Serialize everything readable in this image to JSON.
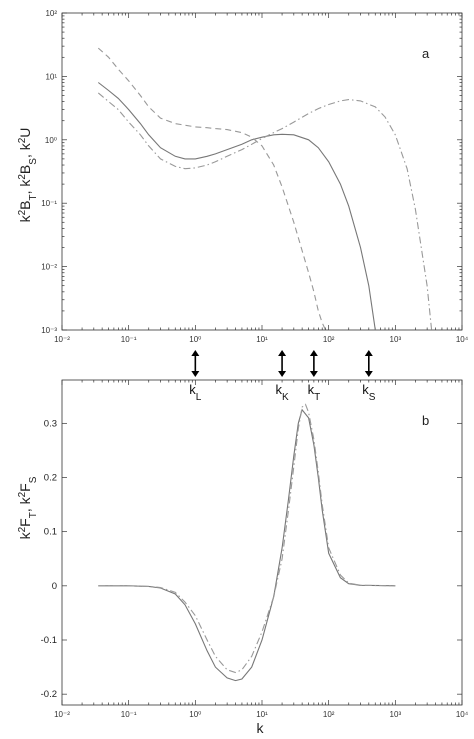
{
  "chart_data": [
    {
      "type": "line",
      "panel_label": "a",
      "ylabel": "k²B_T, k²B_S, k²U",
      "ylabel_parts": [
        {
          "t": "k",
          "sup": false
        },
        {
          "t": "2",
          "sup": true
        },
        {
          "t": "B",
          "sup": false
        },
        {
          "t": "T",
          "sub": true
        },
        {
          "t": ", k",
          "sup": false
        },
        {
          "t": "2",
          "sup": true
        },
        {
          "t": "B",
          "sup": false
        },
        {
          "t": "S",
          "sub": true
        },
        {
          "t": ", k",
          "sup": false
        },
        {
          "t": "2",
          "sup": true
        },
        {
          "t": "U",
          "sup": false
        }
      ],
      "xscale": "log",
      "yscale": "log",
      "xlim": [
        0.01,
        10000
      ],
      "ylim": [
        0.001,
        100
      ],
      "xticks": [
        0.01,
        0.1,
        1,
        10,
        100,
        1000,
        10000
      ],
      "xtick_labels": [
        "10⁻²",
        "10⁻¹",
        "10⁰",
        "10¹",
        "10²",
        "10³",
        "10⁴"
      ],
      "yticks": [
        0.001,
        0.01,
        0.1,
        1,
        10,
        100
      ],
      "ytick_labels": [
        "10⁻³",
        "10⁻²",
        "10⁻¹",
        "10⁰",
        "10¹",
        "10²"
      ],
      "series": [
        {
          "style": "solid",
          "color": "#777777",
          "x": [
            0.035,
            0.05,
            0.07,
            0.1,
            0.15,
            0.2,
            0.3,
            0.5,
            0.7,
            1,
            1.5,
            2,
            3,
            5,
            7,
            10,
            15,
            20,
            30,
            50,
            70,
            100,
            150,
            200,
            300,
            400,
            500
          ],
          "y": [
            8,
            6,
            4.5,
            3,
            1.8,
            1.2,
            0.75,
            0.55,
            0.5,
            0.5,
            0.55,
            0.6,
            0.7,
            0.85,
            1,
            1.1,
            1.2,
            1.22,
            1.2,
            1,
            0.75,
            0.45,
            0.2,
            0.09,
            0.02,
            0.005,
            0.001
          ]
        },
        {
          "style": "dashed",
          "color": "#999999",
          "x": [
            0.035,
            0.05,
            0.07,
            0.1,
            0.15,
            0.2,
            0.3,
            0.5,
            0.7,
            1,
            1.5,
            2,
            3,
            5,
            7,
            10,
            15,
            20,
            30,
            50,
            60,
            70,
            80,
            90
          ],
          "y": [
            28,
            20,
            13,
            8.5,
            5,
            3.3,
            2.2,
            1.8,
            1.7,
            1.6,
            1.55,
            1.5,
            1.45,
            1.3,
            1.1,
            0.8,
            0.4,
            0.18,
            0.05,
            0.008,
            0.004,
            0.002,
            0.0013,
            0.001
          ]
        },
        {
          "style": "dashdot",
          "color": "#999999",
          "x": [
            0.035,
            0.05,
            0.07,
            0.1,
            0.15,
            0.2,
            0.3,
            0.5,
            0.7,
            1,
            1.5,
            2,
            3,
            5,
            7,
            10,
            15,
            20,
            30,
            50,
            70,
            100,
            150,
            200,
            300,
            500,
            700,
            1000,
            1500,
            2000,
            3000,
            3500
          ],
          "y": [
            5.5,
            4,
            3,
            1.9,
            1.2,
            0.8,
            0.5,
            0.38,
            0.35,
            0.36,
            0.4,
            0.45,
            0.55,
            0.7,
            0.85,
            1.05,
            1.3,
            1.5,
            1.9,
            2.6,
            3.1,
            3.6,
            4.1,
            4.3,
            4.1,
            3.3,
            2.3,
            1.2,
            0.35,
            0.08,
            0.005,
            0.001
          ]
        }
      ]
    },
    {
      "type": "line",
      "panel_label": "b",
      "xlabel": "k",
      "ylabel": "k²F_T, k²F_S",
      "ylabel_parts": [
        {
          "t": "k",
          "sup": false
        },
        {
          "t": "2",
          "sup": true
        },
        {
          "t": "F",
          "sup": false
        },
        {
          "t": "T",
          "sub": true
        },
        {
          "t": ", k",
          "sup": false
        },
        {
          "t": "2",
          "sup": true
        },
        {
          "t": "F",
          "sup": false
        },
        {
          "t": "S",
          "sub": true
        }
      ],
      "xscale": "log",
      "yscale": "linear",
      "xlim": [
        0.01,
        10000
      ],
      "ylim": [
        -0.22,
        0.38
      ],
      "xticks": [
        0.01,
        0.1,
        1,
        10,
        100,
        1000,
        10000
      ],
      "xtick_labels": [
        "10⁻²",
        "10⁻¹",
        "10⁰",
        "10¹",
        "10²",
        "10³",
        "10⁴"
      ],
      "yticks": [
        -0.2,
        -0.1,
        0,
        0.1,
        0.2,
        0.3
      ],
      "ytick_labels": [
        "-0.2",
        "-0.1",
        "0",
        "0.1",
        "0.2",
        "0.3"
      ],
      "series": [
        {
          "style": "solid",
          "color": "#777777",
          "x": [
            0.035,
            0.1,
            0.2,
            0.3,
            0.5,
            0.7,
            1,
            1.5,
            2,
            3,
            4,
            5,
            7,
            10,
            15,
            20,
            25,
            30,
            35,
            40,
            50,
            60,
            70,
            80,
            100,
            150,
            200,
            300,
            1000
          ],
          "y": [
            0,
            0,
            -0.001,
            -0.004,
            -0.015,
            -0.035,
            -0.07,
            -0.12,
            -0.15,
            -0.17,
            -0.175,
            -0.172,
            -0.15,
            -0.1,
            -0.02,
            0.07,
            0.16,
            0.24,
            0.3,
            0.325,
            0.31,
            0.26,
            0.2,
            0.14,
            0.06,
            0.015,
            0.004,
            0.001,
            0
          ]
        },
        {
          "style": "dashdot",
          "color": "#999999",
          "x": [
            0.035,
            0.1,
            0.2,
            0.3,
            0.5,
            0.7,
            1,
            1.5,
            2,
            3,
            4,
            5,
            7,
            10,
            15,
            20,
            25,
            30,
            35,
            40,
            45,
            50,
            60,
            70,
            80,
            100,
            150,
            200,
            300,
            1000
          ],
          "y": [
            0,
            0,
            -0.001,
            -0.003,
            -0.012,
            -0.03,
            -0.055,
            -0.1,
            -0.13,
            -0.155,
            -0.16,
            -0.155,
            -0.13,
            -0.085,
            -0.02,
            0.05,
            0.14,
            0.22,
            0.29,
            0.33,
            0.335,
            0.32,
            0.27,
            0.21,
            0.15,
            0.07,
            0.02,
            0.005,
            0.001,
            0
          ]
        }
      ]
    }
  ],
  "wavenumber_markers": [
    {
      "k": 1,
      "base": "k",
      "sub": "L"
    },
    {
      "k": 20,
      "base": "k",
      "sub": "K"
    },
    {
      "k": 60,
      "base": "k",
      "sub": "T"
    },
    {
      "k": 400,
      "base": "k",
      "sub": "S"
    }
  ]
}
